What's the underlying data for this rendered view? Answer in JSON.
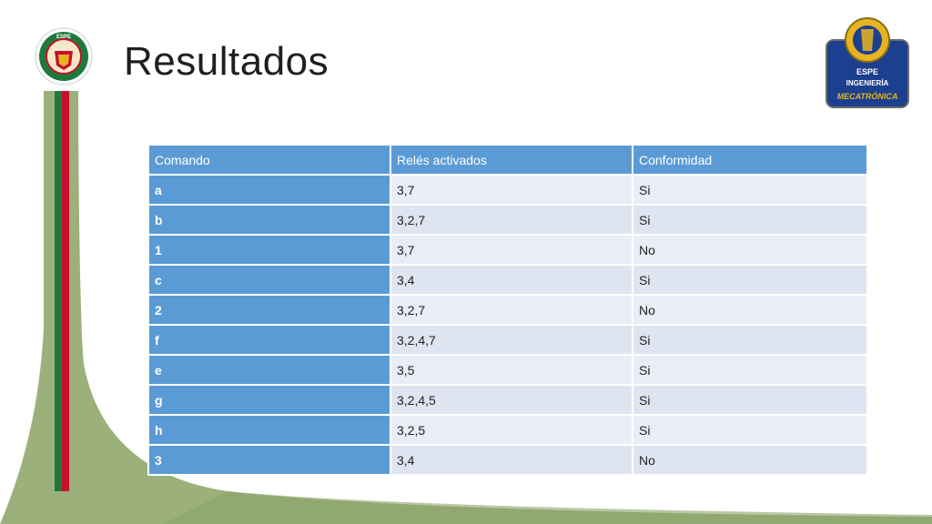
{
  "slide": {
    "title": "Resultados"
  },
  "logos": {
    "left_text": "ESPE",
    "right_lines": [
      "ESPE",
      "INGENIERÍA",
      "MECATRÓNICA"
    ]
  },
  "table": {
    "headers": [
      "Comando",
      "Relés activados",
      "Conformidad"
    ],
    "rows": [
      [
        "a",
        "3,7",
        "Si"
      ],
      [
        "b",
        "3,2,7",
        "Si"
      ],
      [
        "1",
        "3,7",
        "No"
      ],
      [
        "c",
        "3,4",
        "Si"
      ],
      [
        "2",
        "3,2,7",
        "No"
      ],
      [
        "f",
        "3,2,4,7",
        "Si"
      ],
      [
        "e",
        "3,5",
        "Si"
      ],
      [
        "g",
        "3,2,4,5",
        "Si"
      ],
      [
        "h",
        "3,2,5",
        "Si"
      ],
      [
        "3",
        "3,4",
        "No"
      ]
    ]
  },
  "colors": {
    "header_blue": "#5b9bd5",
    "row_light": "#e9edf5",
    "row_alt": "#dfe5f0",
    "sage_green": "#9bb07b",
    "stripe_red": "#c8102e",
    "stripe_green": "#1e7a3c"
  }
}
